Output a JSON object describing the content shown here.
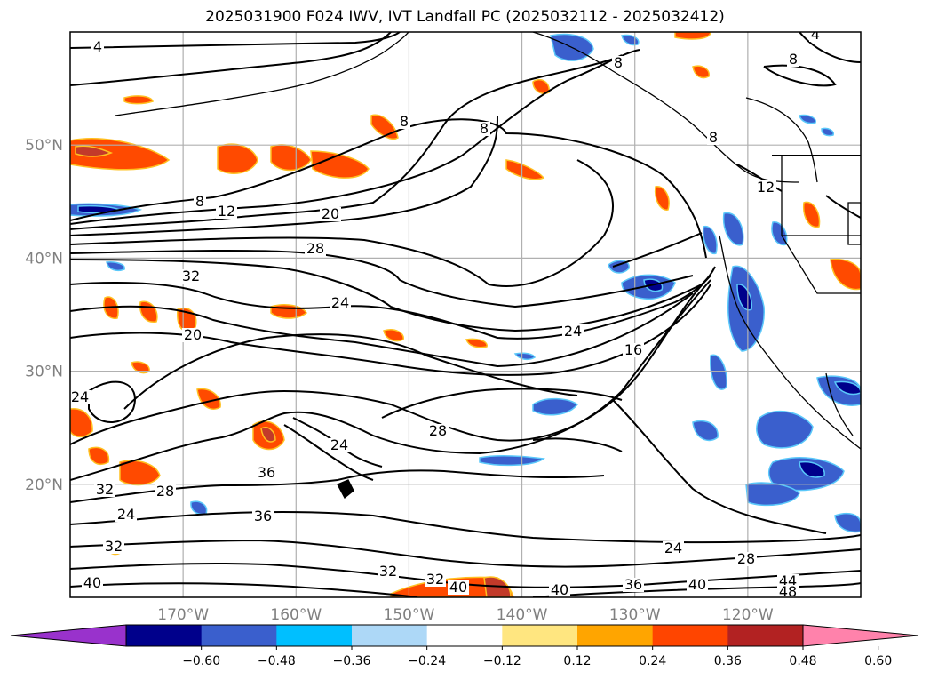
{
  "chart_data": {
    "type": "contour-map",
    "title": "2025031900 F024 IWV, IVT Landfall PC (2025032112 - 2025032412)",
    "lon_ticks": [
      "170°W",
      "160°W",
      "150°W",
      "140°W",
      "130°W",
      "120°W"
    ],
    "lat_ticks": [
      "50°N",
      "40°N",
      "30°N",
      "20°N"
    ],
    "lon_range": [
      -180,
      -110
    ],
    "lat_range": [
      10,
      60
    ],
    "grid": true,
    "contour_variable": "IWV",
    "contour_labels": [
      "4",
      "8",
      "12",
      "16",
      "20",
      "24",
      "28",
      "32",
      "36",
      "40",
      "44",
      "48"
    ],
    "colorbar": {
      "extend": "both",
      "ticks": [
        "−0.60",
        "−0.48",
        "−0.36",
        "−0.24",
        "−0.12",
        "0.12",
        "0.24",
        "0.36",
        "0.48",
        "0.60"
      ],
      "colors": [
        "#9932cc",
        "#00008b",
        "#3a5fcd",
        "#00bfff",
        "#add8f7",
        "#ffffff",
        "#ffe680",
        "#ffa500",
        "#ff4500",
        "#b22222",
        "#ff82ab"
      ]
    }
  }
}
